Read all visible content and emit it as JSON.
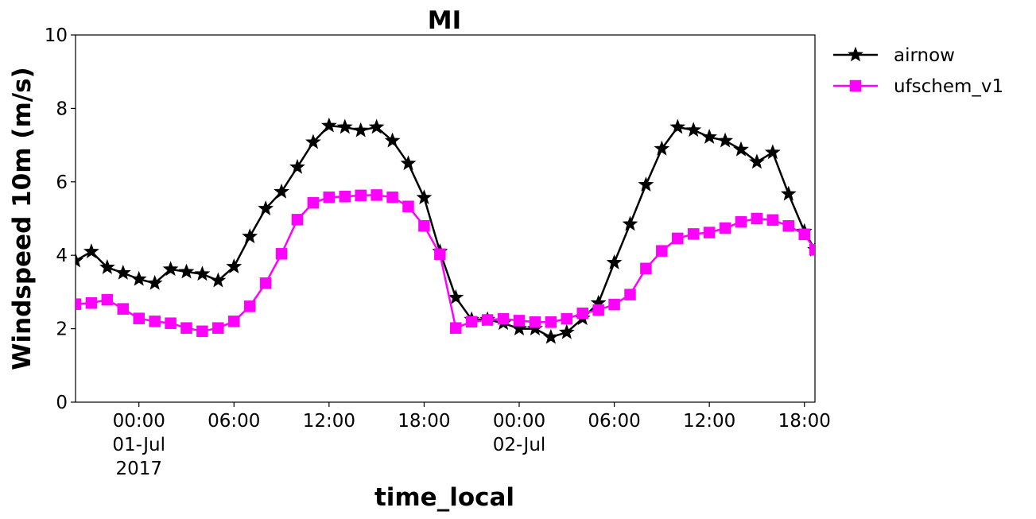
{
  "chart_data": {
    "type": "line",
    "title": "MI",
    "xlabel": "time_local",
    "ylabel": "Windspeed 10m (m/s)",
    "ylim": [
      0,
      10
    ],
    "yticks": [
      "0",
      "2",
      "4",
      "6",
      "8",
      "10"
    ],
    "xlim": [
      "2017-06-30 20:00",
      "2017-07-02 18:40"
    ],
    "xticks": [
      {
        "time": "2017-07-01 00:00",
        "lines": [
          "00:00",
          "01-Jul",
          "2017"
        ]
      },
      {
        "time": "2017-07-01 06:00",
        "lines": [
          "06:00"
        ]
      },
      {
        "time": "2017-07-01 12:00",
        "lines": [
          "12:00"
        ]
      },
      {
        "time": "2017-07-01 18:00",
        "lines": [
          "18:00"
        ]
      },
      {
        "time": "2017-07-02 00:00",
        "lines": [
          "00:00",
          "02-Jul"
        ]
      },
      {
        "time": "2017-07-02 06:00",
        "lines": [
          "06:00"
        ]
      },
      {
        "time": "2017-07-02 12:00",
        "lines": [
          "12:00"
        ]
      },
      {
        "time": "2017-07-02 18:00",
        "lines": [
          "18:00"
        ]
      }
    ],
    "legend_position": "outside top-right",
    "grid": false,
    "x": [
      "2017-06-30 20:00",
      "2017-06-30 21:00",
      "2017-06-30 22:00",
      "2017-06-30 23:00",
      "2017-07-01 00:00",
      "2017-07-01 01:00",
      "2017-07-01 02:00",
      "2017-07-01 03:00",
      "2017-07-01 04:00",
      "2017-07-01 05:00",
      "2017-07-01 06:00",
      "2017-07-01 07:00",
      "2017-07-01 08:00",
      "2017-07-01 09:00",
      "2017-07-01 10:00",
      "2017-07-01 11:00",
      "2017-07-01 12:00",
      "2017-07-01 13:00",
      "2017-07-01 14:00",
      "2017-07-01 15:00",
      "2017-07-01 16:00",
      "2017-07-01 17:00",
      "2017-07-01 18:00",
      "2017-07-01 19:00",
      "2017-07-01 20:00",
      "2017-07-01 21:00",
      "2017-07-01 22:00",
      "2017-07-01 23:00",
      "2017-07-02 00:00",
      "2017-07-02 01:00",
      "2017-07-02 02:00",
      "2017-07-02 03:00",
      "2017-07-02 04:00",
      "2017-07-02 05:00",
      "2017-07-02 06:00",
      "2017-07-02 07:00",
      "2017-07-02 08:00",
      "2017-07-02 09:00",
      "2017-07-02 10:00",
      "2017-07-02 11:00",
      "2017-07-02 12:00",
      "2017-07-02 13:00",
      "2017-07-02 14:00",
      "2017-07-02 15:00",
      "2017-07-02 16:00",
      "2017-07-02 17:00",
      "2017-07-02 18:00",
      "2017-07-02 18:40"
    ],
    "series": [
      {
        "name": "airnow",
        "color": "#000000",
        "marker": "star",
        "values": [
          3.85,
          4.1,
          3.67,
          3.52,
          3.35,
          3.24,
          3.62,
          3.55,
          3.49,
          3.31,
          3.69,
          4.51,
          5.27,
          5.73,
          6.4,
          7.08,
          7.53,
          7.49,
          7.4,
          7.49,
          7.12,
          6.5,
          5.57,
          4.1,
          2.85,
          2.25,
          2.25,
          2.15,
          2.0,
          2.0,
          1.77,
          1.9,
          2.28,
          2.7,
          3.8,
          4.85,
          5.92,
          6.9,
          7.49,
          7.41,
          7.22,
          7.12,
          6.88,
          6.54,
          6.8,
          5.67,
          4.65,
          4.15
        ]
      },
      {
        "name": "ufschem_v1",
        "color": "#ff00ff",
        "marker": "square",
        "values": [
          2.67,
          2.7,
          2.79,
          2.54,
          2.28,
          2.2,
          2.15,
          2.02,
          1.93,
          2.02,
          2.2,
          2.61,
          3.24,
          4.04,
          4.97,
          5.43,
          5.58,
          5.6,
          5.63,
          5.64,
          5.58,
          5.33,
          4.8,
          4.03,
          2.02,
          2.19,
          2.24,
          2.27,
          2.22,
          2.18,
          2.18,
          2.27,
          2.42,
          2.51,
          2.66,
          2.93,
          3.64,
          4.12,
          4.46,
          4.58,
          4.62,
          4.74,
          4.91,
          5.0,
          4.96,
          4.8,
          4.57,
          4.15
        ]
      }
    ]
  }
}
